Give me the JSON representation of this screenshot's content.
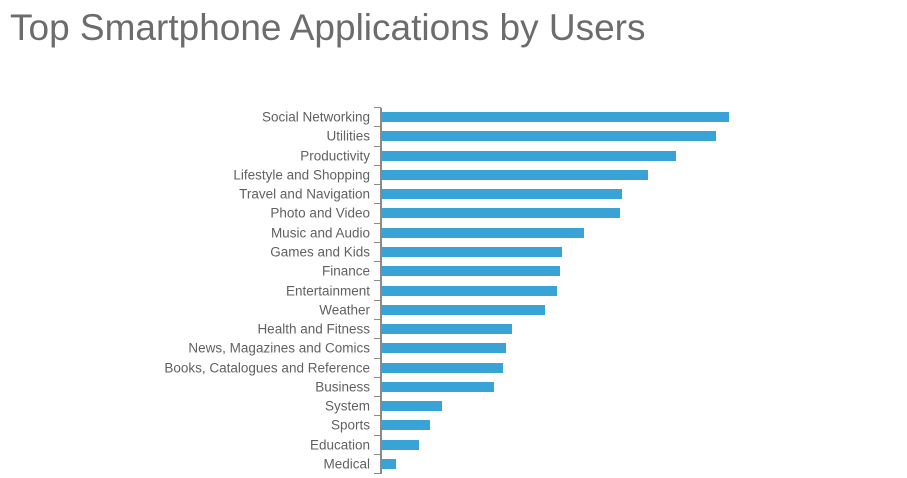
{
  "title": "Top Smartphone Applications by Users",
  "colors": {
    "bar": "#39A3D7",
    "axis": "#8A8A8A",
    "label": "#616161",
    "title": "#6C6C6C",
    "background": "#FFFFFF"
  },
  "chart_data": {
    "type": "bar",
    "orientation": "horizontal",
    "title": "Top Smartphone Applications by Users",
    "categories": [
      "Social Networking",
      "Utilities",
      "Productivity",
      "Lifestyle and Shopping",
      "Travel and Navigation",
      "Photo and Video",
      "Music and Audio",
      "Games and Kids",
      "Finance",
      "Entertainment",
      "Weather",
      "Health and Fitness",
      "News, Magazines and Comics",
      "Books, Catalogues and Reference",
      "Business",
      "System",
      "Sports",
      "Education",
      "Medical"
    ],
    "values": [
      100,
      96.4,
      84.8,
      76.8,
      69.3,
      68.7,
      58.2,
      51.9,
      51.3,
      50.5,
      47.2,
      37.5,
      35.9,
      34.9,
      32.4,
      17.4,
      14.0,
      10.8,
      4.2
    ],
    "value_note": "x-axis has no numeric labels or gridlines; values are relative bar lengths expressed as percent of the longest bar (Social Networking = 100)",
    "xlabel": "",
    "ylabel": "",
    "xlim": [
      0,
      104
    ],
    "grid": false,
    "legend": false,
    "bars_sorted": "descending top to bottom"
  }
}
